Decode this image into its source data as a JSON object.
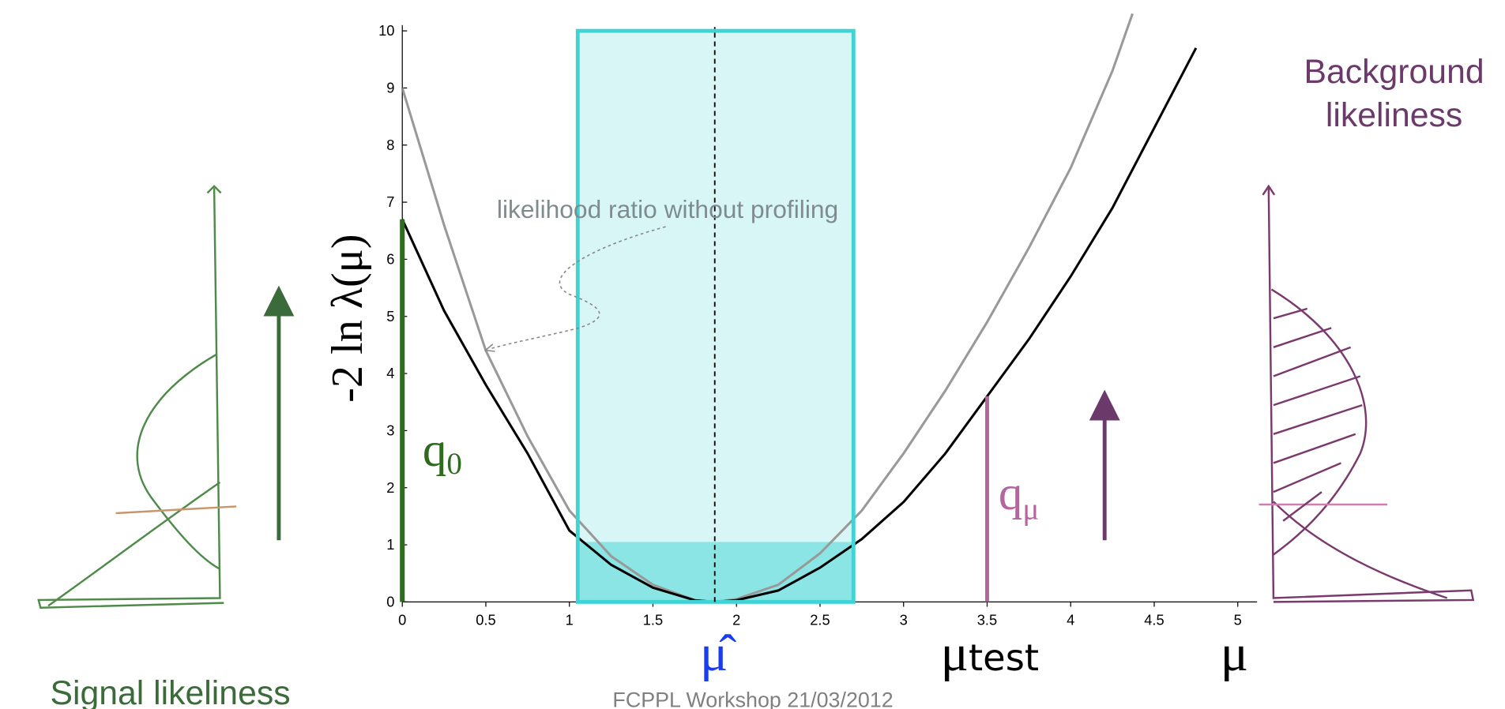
{
  "chart_data": {
    "type": "line",
    "ylabel": "-2 ln λ(μ)",
    "xlim": [
      0,
      5
    ],
    "ylim": [
      0,
      10
    ],
    "xticks": [
      0,
      0.5,
      1,
      1.5,
      2,
      2.5,
      3,
      3.5,
      4,
      4.5,
      5
    ],
    "yticks": [
      0,
      1,
      2,
      3,
      4,
      5,
      6,
      7,
      8,
      9,
      10
    ],
    "series": [
      {
        "color": "#999999",
        "x": [
          0,
          0.25,
          0.5,
          0.75,
          1,
          1.25,
          1.5,
          1.75,
          1.87,
          2,
          2.25,
          2.5,
          2.75,
          3,
          3.25,
          3.5,
          3.75,
          4,
          4.25,
          4.37
        ],
        "values": [
          9.0,
          6.6,
          4.4,
          2.9,
          1.6,
          0.8,
          0.3,
          0.03,
          0,
          0.05,
          0.3,
          0.85,
          1.6,
          2.6,
          3.7,
          4.9,
          6.2,
          7.6,
          9.3,
          10.3
        ]
      },
      {
        "color": "#000000",
        "x": [
          0,
          0.25,
          0.5,
          0.75,
          1,
          1.25,
          1.5,
          1.75,
          1.87,
          2,
          2.25,
          2.5,
          2.75,
          3,
          3.25,
          3.5,
          3.75,
          4,
          4.25,
          4.5,
          4.75
        ],
        "values": [
          6.7,
          5.1,
          3.8,
          2.6,
          1.25,
          0.65,
          0.25,
          0.03,
          0,
          0.03,
          0.2,
          0.6,
          1.1,
          1.75,
          2.6,
          3.6,
          4.6,
          5.7,
          6.9,
          8.3,
          9.7
        ]
      }
    ],
    "interval": [
      1.05,
      2.7
    ],
    "interval_color": "#3fd3d3",
    "threshold": 1.05,
    "mu_hat": 1.87,
    "q0": {
      "x": 0,
      "value": 6.7,
      "color": "#2e6b1f"
    },
    "qmu": {
      "x": 3.5,
      "value": 3.6,
      "color": "#b5659e"
    },
    "annotations": {
      "no_profiling": "likelihood ratio without profiling",
      "q0_label": {
        "text": "q",
        "sub": "0"
      },
      "qmu_label": {
        "text": "q",
        "sub": "μ"
      },
      "mu_hat_label": "μ̂",
      "mu_test_label": {
        "text": "μ",
        "sub": "test"
      },
      "mu_label": "μ"
    }
  },
  "slide": {
    "signal": "Signal likeliness",
    "background": [
      "Background",
      "likeliness"
    ],
    "footer": "FCPPL Workshop  21/03/2012"
  }
}
